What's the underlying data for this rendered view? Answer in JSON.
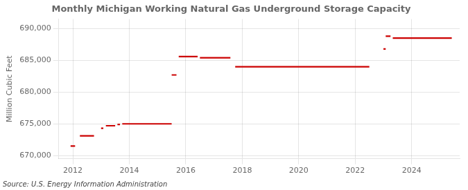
{
  "chart_data": {
    "type": "line",
    "title": "Monthly Michigan Working Natural Gas Underground Storage Capacity",
    "ylabel": "Million Cubic Feet",
    "annotations": [
      "Source: U.S. Energy Information Administration"
    ],
    "color": "#cc0000",
    "grid": true,
    "xlim": [
      2011.5,
      2025.7
    ],
    "xticks": [
      2012,
      2014,
      2016,
      2018,
      2020,
      2022,
      2024
    ],
    "ylim": [
      669500,
      691500
    ],
    "yticks": [
      {
        "value": 670000,
        "label": "670,000"
      },
      {
        "value": 675000,
        "label": "675,000"
      },
      {
        "value": 680000,
        "label": "680,000"
      },
      {
        "value": 685000,
        "label": "685,000"
      },
      {
        "value": 690000,
        "label": "690,000"
      }
    ],
    "x": [
      2011.92,
      2012.08,
      null,
      2012.25,
      2012.75,
      null,
      2013.0,
      2013.08,
      null,
      2013.17,
      2013.5,
      null,
      2013.58,
      2013.67,
      null,
      2013.75,
      2015.5,
      null,
      2015.5,
      2015.67,
      null,
      2015.75,
      2016.42,
      null,
      2016.5,
      2017.58,
      null,
      2017.75,
      2022.5,
      null,
      2023.0,
      2023.08,
      null,
      2023.08,
      2023.25,
      null,
      2023.33,
      2025.42
    ],
    "values": [
      671500,
      671500,
      null,
      673100,
      673100,
      null,
      674300,
      674300,
      null,
      674700,
      674700,
      null,
      674900,
      674900,
      null,
      675000,
      675000,
      null,
      682700,
      682700,
      null,
      685600,
      685600,
      null,
      685400,
      685400,
      null,
      684000,
      684000,
      null,
      686800,
      686800,
      null,
      688800,
      688800,
      null,
      688500,
      688500
    ]
  }
}
